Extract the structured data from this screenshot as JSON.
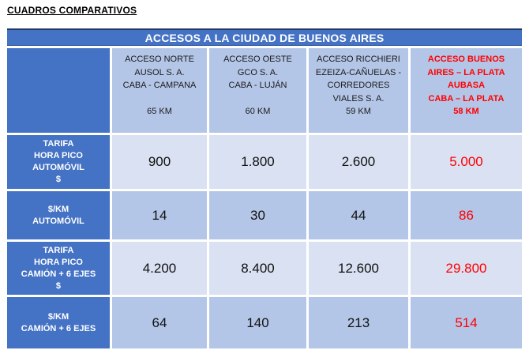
{
  "title": "CUADROS COMPARATIVOS",
  "table": {
    "banner": "ACCESOS A LA CIUDAD DE BUENOS AIRES",
    "column_headers": [
      "ACCESO NORTE\nAUSOL S. A.\nCABA - CAMPANA\n\n65 KM",
      "ACCESO OESTE\nGCO S. A.\nCABA - LUJÁN\n\n60 KM",
      "ACCESO RICCHIERI\nEZEIZA-CAÑUELAS -\nCORREDORES\nVIALES S. A.\n59 KM",
      "ACCESO BUENOS\nAIRES – LA PLATA\nAUBASA\nCABA – LA PLATA\n58 KM"
    ],
    "rows": [
      {
        "label": "TARIFA\nHORA PICO\nAUTOMÓVIL\n$",
        "values": [
          "900",
          "1.800",
          "2.600",
          "5.000"
        ]
      },
      {
        "label": "$/KM\nAUTOMÓVIL",
        "values": [
          "14",
          "30",
          "44",
          "86"
        ]
      },
      {
        "label": "TARIFA\nHORA PICO\nCAMIÓN + 6 EJES\n$",
        "values": [
          "4.200",
          "8.400",
          "12.600",
          "29.800"
        ]
      },
      {
        "label": "$/KM\nCAMIÓN + 6 EJES",
        "values": [
          "64",
          "140",
          "213",
          "514"
        ]
      }
    ],
    "colors": {
      "header_blue": "#4472C4",
      "light_cell": "#D9E1F2",
      "medium_cell": "#B4C6E7",
      "highlight_red": "#FF0000"
    }
  }
}
